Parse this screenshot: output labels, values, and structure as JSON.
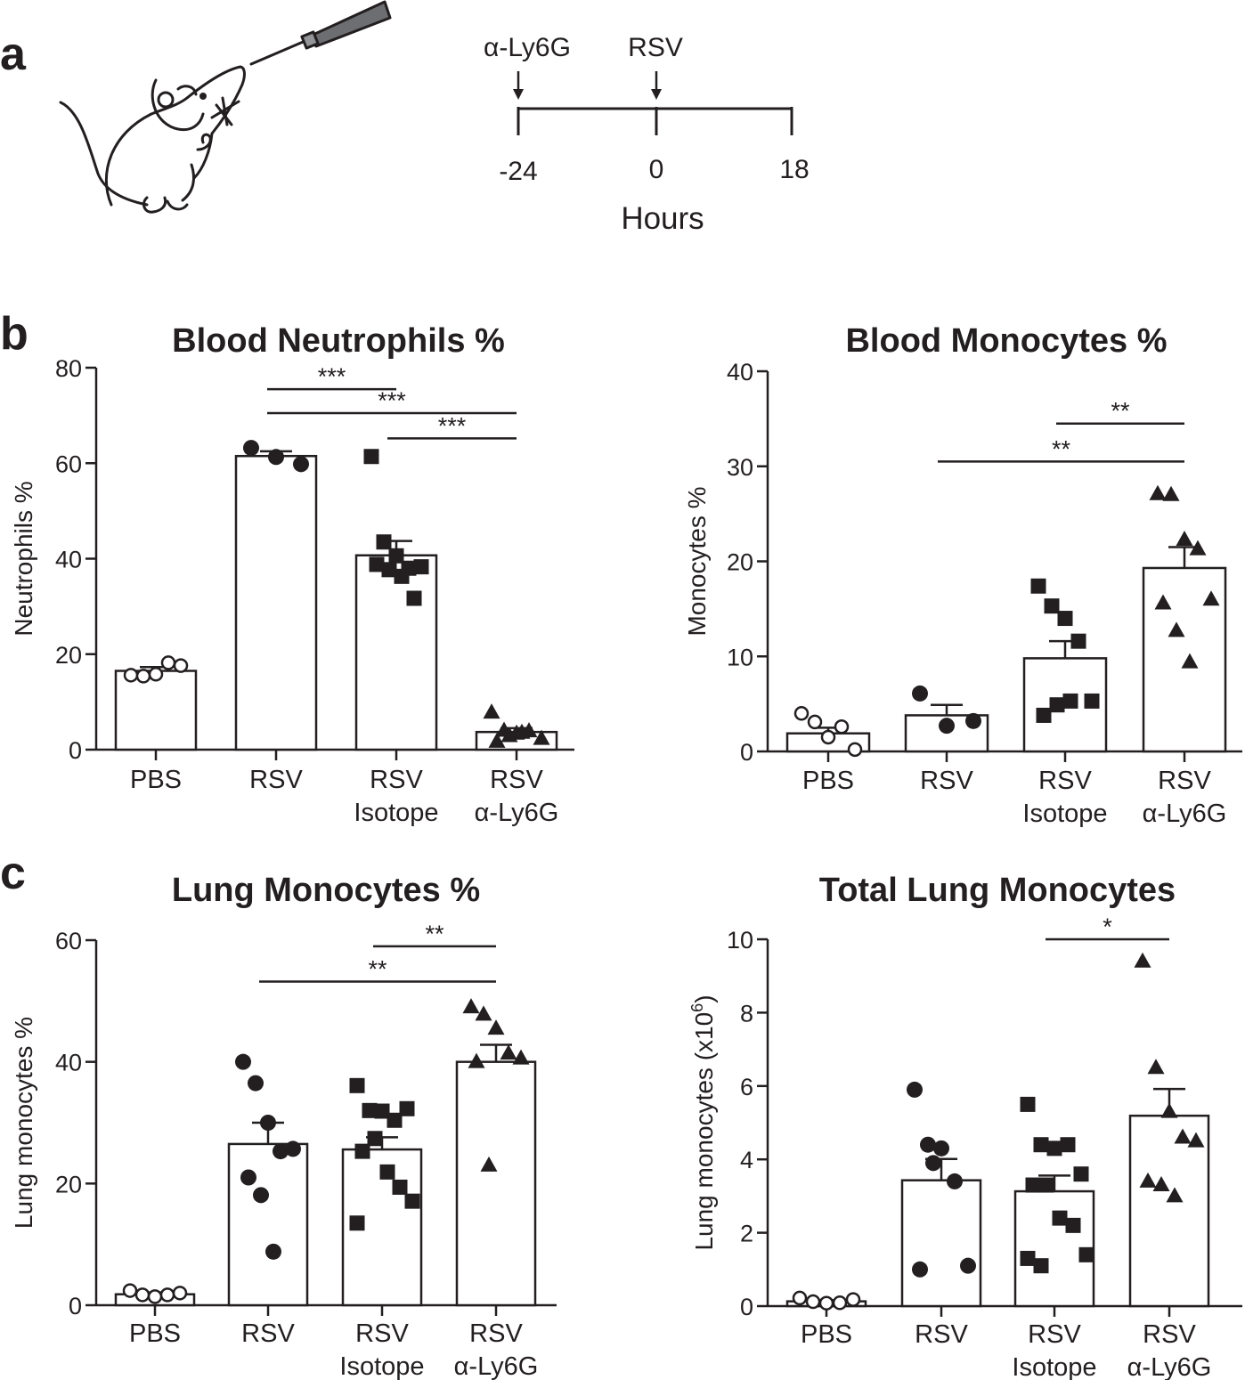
{
  "panels": {
    "a": "a",
    "b": "b",
    "c": "c"
  },
  "timeline": {
    "events": [
      {
        "label": "α-Ly6G",
        "time": -24
      },
      {
        "label": "RSV",
        "time": 0
      }
    ],
    "ticks": [
      "-24",
      "0",
      "18"
    ],
    "xlabel": "Hours"
  },
  "chart_data": [
    {
      "type": "bar",
      "title": "Blood Neutrophils %",
      "ylabel": "Neutrophils %",
      "xlabel": "",
      "ylim": [
        0,
        80
      ],
      "yticks": [
        0,
        20,
        40,
        60,
        80
      ],
      "categories": [
        [
          "PBS"
        ],
        [
          "RSV"
        ],
        [
          "RSV",
          "Isotope"
        ],
        [
          "RSV",
          "α-Ly6G"
        ]
      ],
      "markers": [
        "circle-open",
        "circle",
        "square",
        "triangle"
      ],
      "values": [
        16.5,
        61.5,
        40.7,
        3.7
      ],
      "sem": [
        0.8,
        1.0,
        3.0,
        0.8
      ],
      "points": [
        [
          15.6,
          15.4,
          15.8,
          18.2,
          17.6
        ],
        [
          63.2,
          61.3,
          59.8
        ],
        [
          61.4,
          43.5,
          40.6,
          38.0,
          38.3,
          38.8,
          37.7,
          36.3,
          31.7
        ],
        [
          7.8,
          4.0,
          3.4,
          3.9,
          2.3,
          1.7,
          2.9,
          3.6
        ]
      ],
      "significance": [
        {
          "from": 1,
          "to": 2,
          "label": "***",
          "y": 75.5
        },
        {
          "from": 1,
          "to": 3,
          "label": "***",
          "y": 70.5
        },
        {
          "from": 2,
          "to": 3,
          "label": "***",
          "y": 65.2
        }
      ]
    },
    {
      "type": "bar",
      "title": "Blood Monocytes %",
      "ylabel": "Monocytes %",
      "xlabel": "",
      "ylim": [
        0,
        40
      ],
      "yticks": [
        0,
        10,
        20,
        30,
        40
      ],
      "categories": [
        [
          "PBS"
        ],
        [
          "RSV"
        ],
        [
          "RSV",
          "Isotope"
        ],
        [
          "RSV",
          "α-Ly6G"
        ]
      ],
      "markers": [
        "circle-open",
        "circle",
        "square",
        "triangle"
      ],
      "values": [
        1.9,
        3.8,
        9.8,
        19.3
      ],
      "sem": [
        0.6,
        1.1,
        1.8,
        2.2
      ],
      "points": [
        [
          4.0,
          3.1,
          1.5,
          2.6,
          0.2
        ],
        [
          6.1,
          2.7,
          3.2
        ],
        [
          17.4,
          15.3,
          14.0,
          11.6,
          5.3,
          3.8,
          4.9,
          5.3
        ],
        [
          27.1,
          27.0,
          22.3,
          21.3,
          16.0,
          15.6,
          12.7,
          9.4
        ]
      ],
      "significance": [
        {
          "from": 2,
          "to": 3,
          "label": "**",
          "y": 34.5
        },
        {
          "from": 1,
          "to": 3,
          "label": "**",
          "y": 30.5
        }
      ]
    },
    {
      "type": "bar",
      "title": "Lung Monocytes %",
      "ylabel": "Lung monocytes %",
      "xlabel": "",
      "ylim": [
        0,
        60
      ],
      "yticks": [
        0,
        20,
        40,
        60
      ],
      "categories": [
        [
          "PBS"
        ],
        [
          "RSV"
        ],
        [
          "RSV",
          "Isotope"
        ],
        [
          "RSV",
          "α-Ly6G"
        ]
      ],
      "markers": [
        "circle-open",
        "circle",
        "square",
        "triangle"
      ],
      "values": [
        1.8,
        26.5,
        25.6,
        40.0
      ],
      "sem": [
        0.3,
        3.5,
        2.0,
        2.8
      ],
      "points": [
        [
          2.4,
          1.7,
          1.4,
          1.7,
          2.0
        ],
        [
          40.0,
          36.5,
          30.0,
          25.3,
          25.7,
          21.0,
          18.1,
          8.8
        ],
        [
          36.1,
          32.0,
          31.9,
          30.4,
          32.3,
          25.3,
          27.4,
          21.9,
          19.4,
          17.1,
          13.5
        ],
        [
          49.0,
          47.8,
          45.5,
          41.4,
          40.6,
          40.0,
          23.0
        ]
      ],
      "significance": [
        {
          "from": 2,
          "to": 3,
          "label": "**",
          "y": 59.0
        },
        {
          "from": 1,
          "to": 3,
          "label": "**",
          "y": 53.2
        }
      ]
    },
    {
      "type": "bar",
      "title": "Total Lung Monocytes",
      "ylabel": "Lung monocytes (x10",
      "ylabel_sup": "6",
      "ylabel_close": ")",
      "xlabel": "",
      "ylim": [
        0,
        10
      ],
      "yticks": [
        0,
        2,
        4,
        6,
        8,
        10
      ],
      "categories": [
        [
          "PBS"
        ],
        [
          "RSV"
        ],
        [
          "RSV",
          "Isotope"
        ],
        [
          "RSV",
          "α-Ly6G"
        ]
      ],
      "markers": [
        "circle-open",
        "circle",
        "square",
        "triangle"
      ],
      "values": [
        0.13,
        3.43,
        3.13,
        5.19
      ],
      "sem": [
        0.03,
        0.58,
        0.43,
        0.73
      ],
      "points": [
        [
          0.22,
          0.12,
          0.08,
          0.09,
          0.18
        ],
        [
          5.9,
          4.4,
          4.3,
          3.4,
          1.1,
          1.0,
          3.9
        ],
        [
          5.5,
          4.4,
          4.3,
          4.4,
          3.6,
          3.3,
          3.3,
          2.4,
          2.2,
          1.4,
          1.3,
          1.1
        ],
        [
          9.4,
          6.5,
          5.3,
          4.6,
          4.5,
          3.4,
          3.3,
          3.0
        ]
      ],
      "significance": [
        {
          "from": 2,
          "to": 3,
          "label": "*",
          "y": 10.0
        }
      ]
    }
  ]
}
